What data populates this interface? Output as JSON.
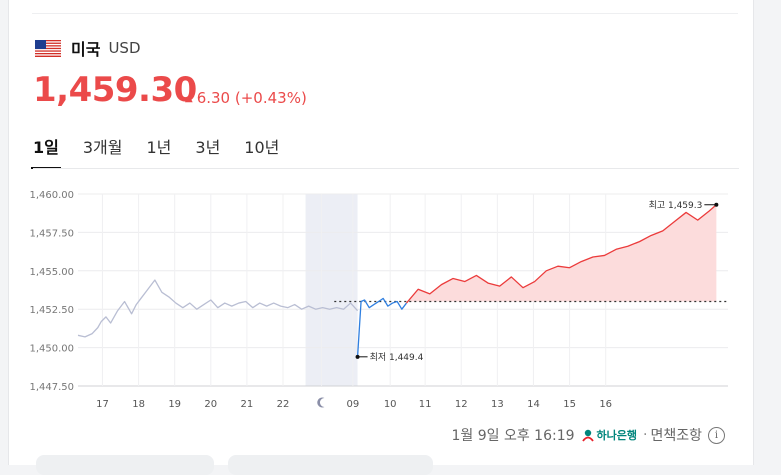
{
  "header": {
    "country": "미국",
    "currency": "USD",
    "flag_icon": "us-flag-icon"
  },
  "quote": {
    "rate": "1,459.30",
    "direction": "up",
    "change": "6.30 (+0.43%)",
    "color_up": "#eb4a4a"
  },
  "tabs": [
    {
      "label": "1일",
      "active": true
    },
    {
      "label": "3개월",
      "active": false
    },
    {
      "label": "1년",
      "active": false
    },
    {
      "label": "3년",
      "active": false
    },
    {
      "label": "10년",
      "active": false
    }
  ],
  "chart_data": {
    "type": "line",
    "y_ticks": [
      "1,460.00",
      "1,457.50",
      "1,455.00",
      "1,452.50",
      "1,450.00",
      "1,447.50"
    ],
    "ylim": [
      1447.5,
      1460.0
    ],
    "x_ticks": [
      "17",
      "18",
      "19",
      "20",
      "21",
      "22",
      "moon-icon",
      "09",
      "10",
      "11",
      "12",
      "13",
      "14",
      "15",
      "16"
    ],
    "reference_value": 1453.0,
    "high_label": "최고 1,459.3",
    "low_label": "최저 1,449.4",
    "high_value": 1459.3,
    "low_value": 1449.4,
    "colors": {
      "overnight": "#b9bed3",
      "down": "#2f7fe0",
      "up": "#eb3b3b",
      "fill": "#fcdcdc",
      "night_band": "#eceef5"
    },
    "series": [
      {
        "segment": "overnight",
        "t": [
          0,
          0.3,
          0.6,
          0.85,
          1.0,
          1.2,
          1.4,
          1.7,
          2.0,
          2.3,
          2.5,
          2.7,
          3.0,
          3.3,
          3.6,
          3.9,
          4.2,
          4.5,
          4.8,
          5.1,
          5.4,
          5.7,
          6.0,
          6.3,
          6.6,
          6.9,
          7.2,
          7.5,
          7.8,
          8.1,
          8.4,
          8.7,
          9.0,
          9.3,
          9.6,
          9.9,
          10.2,
          10.5,
          10.8,
          11.1,
          11.4,
          11.7,
          12.0
        ],
        "v": [
          1450.8,
          1450.7,
          1450.9,
          1451.3,
          1451.7,
          1452.0,
          1451.6,
          1452.4,
          1453.0,
          1452.2,
          1452.8,
          1453.2,
          1453.8,
          1454.4,
          1453.6,
          1453.3,
          1452.9,
          1452.6,
          1452.9,
          1452.5,
          1452.8,
          1453.1,
          1452.6,
          1452.9,
          1452.7,
          1452.9,
          1453.0,
          1452.6,
          1452.9,
          1452.7,
          1452.9,
          1452.7,
          1452.6,
          1452.8,
          1452.5,
          1452.7,
          1452.5,
          1452.6,
          1452.5,
          1452.6,
          1452.5,
          1452.9,
          1452.4
        ]
      },
      {
        "segment": "down",
        "t": [
          12.0,
          12.15,
          12.3,
          12.5,
          12.7,
          12.9,
          13.1,
          13.3,
          13.5,
          13.7,
          13.9,
          14.1
        ],
        "v": [
          1449.4,
          1453.0,
          1453.1,
          1452.6,
          1452.8,
          1453.0,
          1453.2,
          1452.7,
          1452.9,
          1453.0,
          1452.5,
          1452.9
        ]
      },
      {
        "segment": "up",
        "t": [
          14.1,
          14.6,
          15.1,
          15.6,
          16.1,
          16.6,
          17.1,
          17.6,
          18.1,
          18.6,
          19.1,
          19.6,
          20.1,
          20.6,
          21.1,
          21.6,
          22.1,
          22.6,
          23.1,
          23.6,
          24.1,
          24.6,
          25.1,
          25.6,
          26.1,
          26.6,
          27.1,
          27.4
        ],
        "v": [
          1452.9,
          1453.8,
          1453.5,
          1454.1,
          1454.5,
          1454.3,
          1454.7,
          1454.2,
          1454.0,
          1454.6,
          1453.9,
          1454.3,
          1455.0,
          1455.3,
          1455.2,
          1455.6,
          1455.9,
          1456.0,
          1456.4,
          1456.6,
          1456.9,
          1457.3,
          1457.6,
          1458.2,
          1458.8,
          1458.3,
          1458.9,
          1459.3
        ]
      }
    ]
  },
  "footer": {
    "timestamp": "1월 9일 오후 16:19",
    "bank": "하나은행",
    "note": "면책조항",
    "info_icon": "info-icon"
  }
}
